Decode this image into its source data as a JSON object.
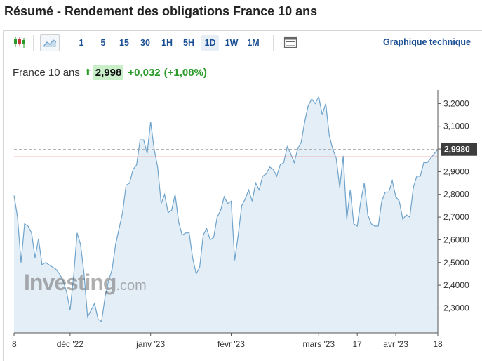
{
  "page": {
    "title": "Résumé - Rendement des obligations France 10 ans"
  },
  "toolbar": {
    "chart_type_icon": "candlestick-icon",
    "area_icon": "area-chart-icon",
    "intervals": [
      "1",
      "5",
      "15",
      "30",
      "1H",
      "5H",
      "1D",
      "1W",
      "1M"
    ],
    "active_interval": "1D",
    "table_icon": "table-icon",
    "technical_link": "Graphique technique"
  },
  "quote": {
    "name": "France 10 ans",
    "arrow_icon": "up-arrow-icon",
    "price": "2,998",
    "change": "+0,032",
    "change_pct": "(+1,08%)",
    "up_color": "#2a9a2a"
  },
  "watermark": {
    "brand": "Investing",
    "domain": ".com"
  },
  "chart_data": {
    "type": "area",
    "title": "",
    "xlabel": "",
    "ylabel": "",
    "ylim": [
      2.19,
      3.26
    ],
    "y_ticks": [
      "3,2000",
      "3,1000",
      "3,0000",
      "2,9000",
      "2,8000",
      "2,7000",
      "2,6000",
      "2,5000",
      "2,4000",
      "2,3000"
    ],
    "y_tick_values": [
      3.2,
      3.1,
      3.0,
      2.9,
      2.8,
      2.7,
      2.6,
      2.5,
      2.4,
      2.3
    ],
    "x_tick_labels": [
      "8",
      "déc '22",
      "janv '23",
      "févr '23",
      "mars '23",
      "17",
      "avr '23",
      "18"
    ],
    "x_tick_index": [
      0,
      16,
      39,
      62,
      87,
      98,
      109,
      121
    ],
    "last_value_label": "2,9980",
    "last_value": 2.998,
    "reference_value": 2.966,
    "line_color": "#6ea3cc",
    "fill_color": "#e4eef6",
    "reference_color": "#f0a0a0",
    "values": [
      2.795,
      2.7,
      2.5,
      2.67,
      2.66,
      2.63,
      2.52,
      2.605,
      2.49,
      2.5,
      2.49,
      2.48,
      2.47,
      2.45,
      2.42,
      2.37,
      2.29,
      2.44,
      2.63,
      2.58,
      2.45,
      2.26,
      2.29,
      2.32,
      2.25,
      2.24,
      2.35,
      2.42,
      2.47,
      2.58,
      2.65,
      2.72,
      2.84,
      2.85,
      2.91,
      2.93,
      3.04,
      3.04,
      2.98,
      3.12,
      3.0,
      2.92,
      2.76,
      2.8,
      2.72,
      2.73,
      2.8,
      2.68,
      2.62,
      2.63,
      2.63,
      2.52,
      2.45,
      2.48,
      2.62,
      2.65,
      2.6,
      2.61,
      2.7,
      2.73,
      2.79,
      2.76,
      2.77,
      2.51,
      2.62,
      2.75,
      2.78,
      2.82,
      2.77,
      2.85,
      2.82,
      2.88,
      2.89,
      2.92,
      2.91,
      2.88,
      2.93,
      2.94,
      3.01,
      2.98,
      2.94,
      3.0,
      3.03,
      3.12,
      3.19,
      3.22,
      3.2,
      3.23,
      3.15,
      3.2,
      3.06,
      3.0,
      2.96,
      2.83,
      2.97,
      2.69,
      2.82,
      2.67,
      2.66,
      2.77,
      2.85,
      2.71,
      2.67,
      2.66,
      2.66,
      2.77,
      2.81,
      2.81,
      2.86,
      2.79,
      2.77,
      2.69,
      2.71,
      2.7,
      2.83,
      2.88,
      2.88,
      2.94,
      2.94,
      2.96,
      2.98,
      2.998
    ]
  }
}
